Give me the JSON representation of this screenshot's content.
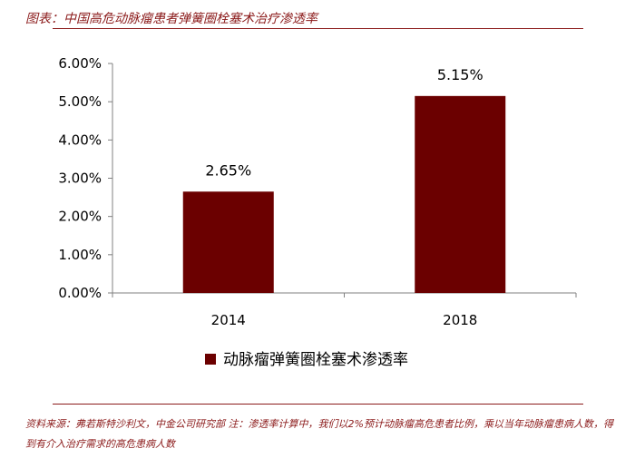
{
  "header": {
    "title": "图表：中国高危动脉瘤患者弹簧圈栓塞术治疗渗透率"
  },
  "footer": {
    "note": "资料来源：弗若斯特沙利文，中金公司研究部 注：渗透率计算中，我们以2%预计动脉瘤高危患者比例，乘以当年动脉瘤患病人数，得到有介入治疗需求的高危患病人数"
  },
  "colors": {
    "accent": "#8B1A1A",
    "bar": "#6B0000"
  },
  "chart_data": {
    "type": "bar",
    "categories": [
      "2014",
      "2018"
    ],
    "series": [
      {
        "name": "动脉瘤弹簧圈栓塞术渗透率",
        "values": [
          2.65,
          5.15
        ]
      }
    ],
    "data_labels": [
      "2.65%",
      "5.15%"
    ],
    "yticks": [
      "0.00%",
      "1.00%",
      "2.00%",
      "3.00%",
      "4.00%",
      "5.00%",
      "6.00%"
    ],
    "ylim": [
      0,
      6
    ],
    "grid": false,
    "legend_position": "bottom"
  }
}
